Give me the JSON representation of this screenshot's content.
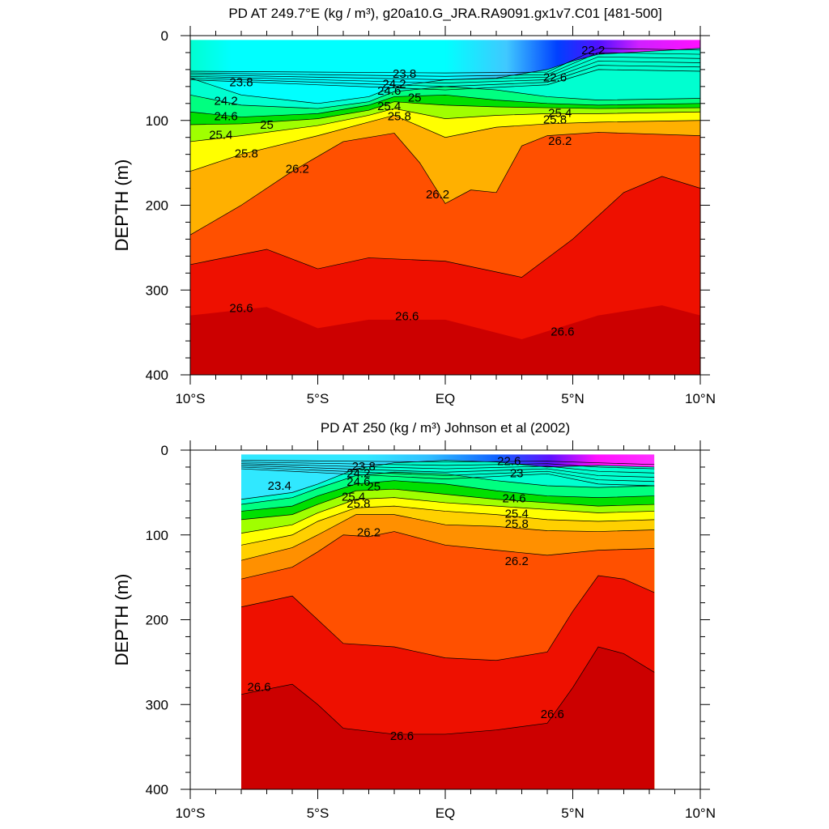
{
  "chart_data": [
    {
      "type": "heatmap",
      "subtype": "filled-contour",
      "title": "PD AT 249.7°E (kg / m³), g20a10.G_JRA.RA9091.gx1v7.C01 [481-500]",
      "ylabel": "DEPTH (m)",
      "xlim": [
        -10,
        10
      ],
      "ylim": [
        400,
        0
      ],
      "x_ticks": [
        -10,
        -5,
        0,
        5,
        10
      ],
      "x_tick_labels": [
        "10°S",
        "5°S",
        "EQ",
        "5°N",
        "10°N"
      ],
      "y_ticks": [
        0,
        100,
        200,
        300,
        400
      ],
      "y_tick_labels": [
        "0",
        "100",
        "200",
        "300",
        "400"
      ],
      "data_extent": {
        "x": [
          -10,
          10
        ],
        "depth": [
          5,
          400
        ]
      },
      "isopycnals": [
        {
          "level": 23.8,
          "color": "#00ffd0",
          "line": [
            [
              -10,
              50
            ],
            [
              -8,
              70
            ],
            [
              -5,
              80
            ],
            [
              -3,
              72
            ],
            [
              -2,
              60
            ],
            [
              0,
              52
            ],
            [
              2,
              50
            ],
            [
              4,
              40
            ],
            [
              5,
              30
            ],
            [
              6,
              22
            ],
            [
              10,
              15
            ]
          ]
        },
        {
          "level": 24.2,
          "color": "#00ff80",
          "line": [
            [
              -10,
              70
            ],
            [
              -8,
              82
            ],
            [
              -5,
              86
            ],
            [
              -3,
              78
            ],
            [
              -2,
              66
            ],
            [
              0,
              60
            ],
            [
              2,
              64
            ],
            [
              4,
              72
            ],
            [
              6,
              76
            ],
            [
              10,
              74
            ]
          ]
        },
        {
          "level": 24.6,
          "color": "#00e000",
          "line": [
            [
              -10,
              90
            ],
            [
              -8,
              96
            ],
            [
              -5,
              92
            ],
            [
              -3,
              82
            ],
            [
              -2,
              72
            ],
            [
              0,
              70
            ],
            [
              2,
              76
            ],
            [
              4,
              80
            ],
            [
              6,
              82
            ],
            [
              10,
              80
            ]
          ]
        },
        {
          "level": 25.0,
          "color": "#a0ff00",
          "line": [
            [
              -10,
              105
            ],
            [
              -8,
              104
            ],
            [
              -5,
              98
            ],
            [
              -3,
              88
            ],
            [
              -2,
              78
            ],
            [
              0,
              82
            ],
            [
              2,
              84
            ],
            [
              4,
              85
            ],
            [
              6,
              86
            ],
            [
              10,
              85
            ]
          ]
        },
        {
          "level": 25.4,
          "color": "#ffff00",
          "line": [
            [
              -10,
              125
            ],
            [
              -8,
              118
            ],
            [
              -5,
              106
            ],
            [
              -3,
              94
            ],
            [
              -2,
              86
            ],
            [
              0,
              98
            ],
            [
              2,
              94
            ],
            [
              4,
              92
            ],
            [
              6,
              92
            ],
            [
              10,
              90
            ]
          ]
        },
        {
          "level": 25.8,
          "color": "#ffb000",
          "line": [
            [
              -10,
              160
            ],
            [
              -8,
              140
            ],
            [
              -5,
              118
            ],
            [
              -3,
              102
            ],
            [
              -2,
              94
            ],
            [
              0,
              120
            ],
            [
              2,
              108
            ],
            [
              4,
              104
            ],
            [
              6,
              102
            ],
            [
              10,
              100
            ]
          ]
        },
        {
          "level": 26.2,
          "color": "#ff5000",
          "line": [
            [
              -10,
              235
            ],
            [
              -8,
              200
            ],
            [
              -6,
              160
            ],
            [
              -4,
              125
            ],
            [
              -2,
              115
            ],
            [
              -1,
              150
            ],
            [
              0,
              198
            ],
            [
              1,
              182
            ],
            [
              2,
              185
            ],
            [
              3,
              130
            ],
            [
              4,
              118
            ],
            [
              6,
              114
            ],
            [
              10,
              118
            ]
          ]
        },
        {
          "level": 26.6,
          "color": "#ee1000",
          "line": [
            [
              -10,
              270
            ],
            [
              -7,
              252
            ],
            [
              -5,
              275
            ],
            [
              -3,
              262
            ],
            [
              0,
              266
            ],
            [
              3,
              285
            ],
            [
              5,
              240
            ],
            [
              7,
              185
            ],
            [
              8.5,
              166
            ],
            [
              10,
              180
            ]
          ]
        }
      ],
      "deep_color": "#cc0000",
      "labels": [
        "23.8",
        "24.2",
        "24.6",
        "25",
        "25.4",
        "25.8",
        "26.2",
        "26.6",
        "22.2",
        "22.6"
      ]
    },
    {
      "type": "heatmap",
      "subtype": "filled-contour",
      "title": "PD AT 250 (kg / m³) Johnson et al (2002)",
      "ylabel": "DEPTH (m)",
      "xlim": [
        -10,
        10
      ],
      "ylim": [
        400,
        0
      ],
      "x_ticks": [
        -10,
        -5,
        0,
        5,
        10
      ],
      "x_tick_labels": [
        "10°S",
        "5°S",
        "EQ",
        "5°N",
        "10°N"
      ],
      "y_ticks": [
        0,
        100,
        200,
        300,
        400
      ],
      "y_tick_labels": [
        "0",
        "100",
        "200",
        "300",
        "400"
      ],
      "data_extent": {
        "x": [
          -8,
          8.2
        ],
        "depth": [
          5,
          400
        ]
      },
      "isopycnals": [
        {
          "level": 23.4,
          "color": "#00ffd0",
          "line": [
            [
              -8,
              58
            ],
            [
              -6,
              50
            ],
            [
              -5,
              40
            ],
            [
              -3.5,
              22
            ],
            [
              -2,
              15
            ],
            [
              0,
              12
            ],
            [
              2,
              14
            ],
            [
              4,
              20
            ],
            [
              6,
              18
            ],
            [
              8.2,
              20
            ]
          ]
        },
        {
          "level": 23.8,
          "color": "#00ff80",
          "line": [
            [
              -8,
              64
            ],
            [
              -6,
              56
            ],
            [
              -5,
              45
            ],
            [
              -3.5,
              30
            ],
            [
              -2,
              26
            ],
            [
              0,
              28
            ],
            [
              2,
              36
            ],
            [
              4,
              42
            ],
            [
              6,
              44
            ],
            [
              8.2,
              42
            ]
          ]
        },
        {
          "level": 24.2,
          "color": "#00e000",
          "line": [
            [
              -8,
              72
            ],
            [
              -6,
              66
            ],
            [
              -5,
              54
            ],
            [
              -3.5,
              40
            ],
            [
              -2,
              36
            ],
            [
              0,
              40
            ],
            [
              2,
              48
            ],
            [
              4,
              54
            ],
            [
              6,
              56
            ],
            [
              8.2,
              54
            ]
          ]
        },
        {
          "level": 24.6,
          "color": "#a0ff00",
          "line": [
            [
              -8,
              82
            ],
            [
              -6,
              76
            ],
            [
              -5,
              64
            ],
            [
              -3.5,
              48
            ],
            [
              -2,
              46
            ],
            [
              0,
              52
            ],
            [
              2,
              58
            ],
            [
              4,
              62
            ],
            [
              6,
              66
            ],
            [
              8.2,
              64
            ]
          ]
        },
        {
          "level": 25.0,
          "color": "#ffff00",
          "line": [
            [
              -8,
              98
            ],
            [
              -6,
              88
            ],
            [
              -5,
              74
            ],
            [
              -3.5,
              58
            ],
            [
              -2,
              56
            ],
            [
              0,
              62
            ],
            [
              2,
              66
            ],
            [
              4,
              70
            ],
            [
              6,
              74
            ],
            [
              8.2,
              72
            ]
          ]
        },
        {
          "level": 25.4,
          "color": "#ffd000",
          "line": [
            [
              -8,
              112
            ],
            [
              -6,
              100
            ],
            [
              -5,
              84
            ],
            [
              -3.5,
              68
            ],
            [
              -2,
              66
            ],
            [
              0,
              72
            ],
            [
              2,
              76
            ],
            [
              4,
              82
            ],
            [
              6,
              84
            ],
            [
              8.2,
              82
            ]
          ]
        },
        {
          "level": 25.8,
          "color": "#ff9000",
          "line": [
            [
              -8,
              130
            ],
            [
              -6,
              115
            ],
            [
              -5,
              100
            ],
            [
              -3.5,
              76
            ],
            [
              -2,
              76
            ],
            [
              0,
              88
            ],
            [
              2,
              90
            ],
            [
              4,
              95
            ],
            [
              6,
              96
            ],
            [
              8.2,
              94
            ]
          ]
        },
        {
          "level": 26.2,
          "color": "#ff5000",
          "line": [
            [
              -8,
              152
            ],
            [
              -6,
              138
            ],
            [
              -5,
              120
            ],
            [
              -4,
              100
            ],
            [
              -3,
              102
            ],
            [
              -2,
              96
            ],
            [
              0,
              112
            ],
            [
              2,
              118
            ],
            [
              4,
              124
            ],
            [
              6,
              118
            ],
            [
              8.2,
              116
            ]
          ]
        },
        {
          "level": 26.6,
          "color": "#ee1000",
          "line": [
            [
              -8,
              185
            ],
            [
              -6,
              172
            ],
            [
              -5,
              200
            ],
            [
              -4,
              228
            ],
            [
              -2,
              232
            ],
            [
              0,
              245
            ],
            [
              2,
              248
            ],
            [
              4,
              238
            ],
            [
              5,
              190
            ],
            [
              6,
              148
            ],
            [
              7,
              152
            ],
            [
              8.2,
              168
            ]
          ]
        }
      ],
      "deep_contour": {
        "level": 26.6,
        "line": [
          [
            -8,
            288
          ],
          [
            -6,
            276
          ],
          [
            -5,
            300
          ],
          [
            -4,
            328
          ],
          [
            -2,
            335
          ],
          [
            0,
            335
          ],
          [
            2,
            330
          ],
          [
            4,
            322
          ],
          [
            5,
            280
          ],
          [
            6,
            232
          ],
          [
            7,
            240
          ],
          [
            8.2,
            262
          ]
        ]
      },
      "deep_color": "#cc0000",
      "labels": [
        "23.4",
        "23.8",
        "24.2",
        "24.6",
        "25",
        "25.4",
        "25.8",
        "26.2",
        "26.6",
        "22.6",
        "23"
      ]
    }
  ]
}
